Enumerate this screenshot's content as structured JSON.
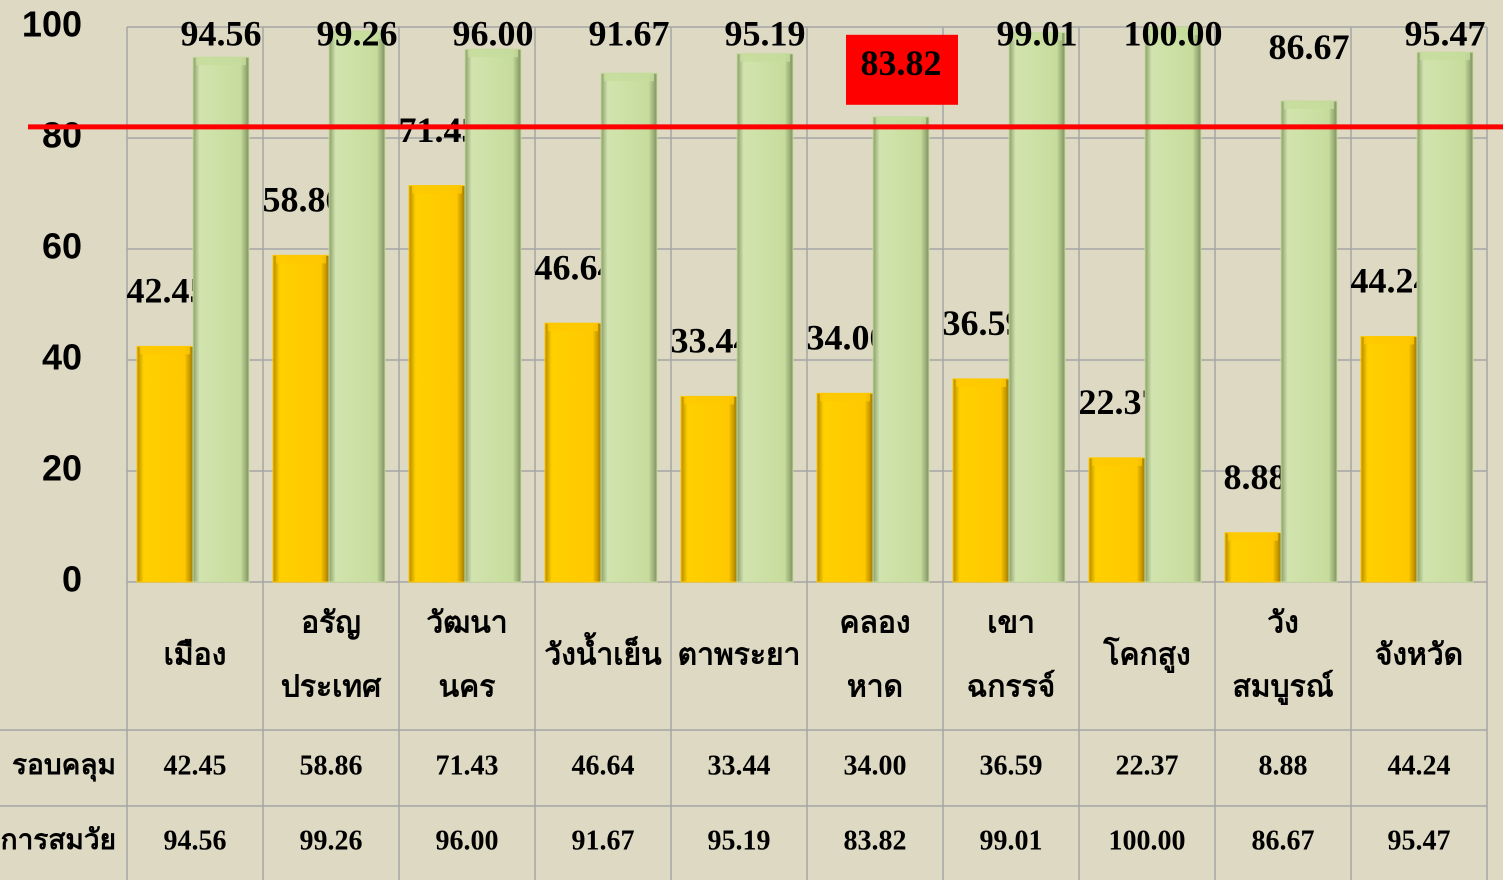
{
  "chart_data": {
    "type": "bar",
    "categories": [
      [
        "เมือง"
      ],
      [
        "อรัญ",
        "ประเทศ"
      ],
      [
        "วัฒนา",
        "นคร"
      ],
      [
        "วังน้ำเย็น"
      ],
      [
        "ตาพระยา"
      ],
      [
        "คลอง",
        "หาด"
      ],
      [
        "เขา",
        "ฉกรรจ์"
      ],
      [
        "โคกสูง"
      ],
      [
        "วัง",
        "สมบูรณ์"
      ],
      [
        "จังหวัด"
      ]
    ],
    "series": [
      {
        "name": "รอบคลุม",
        "color": "#ffc800",
        "values": [
          42.45,
          58.86,
          71.43,
          46.64,
          33.44,
          34,
          36.59,
          22.37,
          8.88,
          44.24
        ],
        "value_labels": [
          "42.45",
          "58.86",
          "71.43",
          "46.64",
          "33.44",
          "34.00",
          "36.59",
          "22.37",
          "8.88",
          "44.24"
        ]
      },
      {
        "name": "การสมวัย",
        "color": "#c6dc9c",
        "values": [
          94.56,
          99.26,
          96,
          91.67,
          95.19,
          83.82,
          99.01,
          100,
          86.67,
          95.47
        ],
        "value_labels": [
          "94.56",
          "99.26",
          "96.00",
          "91.67",
          "95.19",
          "83.82",
          "99.01",
          "100.00",
          "86.67",
          "95.47"
        ]
      }
    ],
    "ylim": [
      0,
      100
    ],
    "yticks": [
      0,
      20,
      40,
      60,
      80,
      100
    ],
    "grid": true,
    "reference_line": {
      "value": 82,
      "color": "#ff0000"
    },
    "highlight": {
      "series": 1,
      "index": 5,
      "color": "#ff0000"
    }
  }
}
